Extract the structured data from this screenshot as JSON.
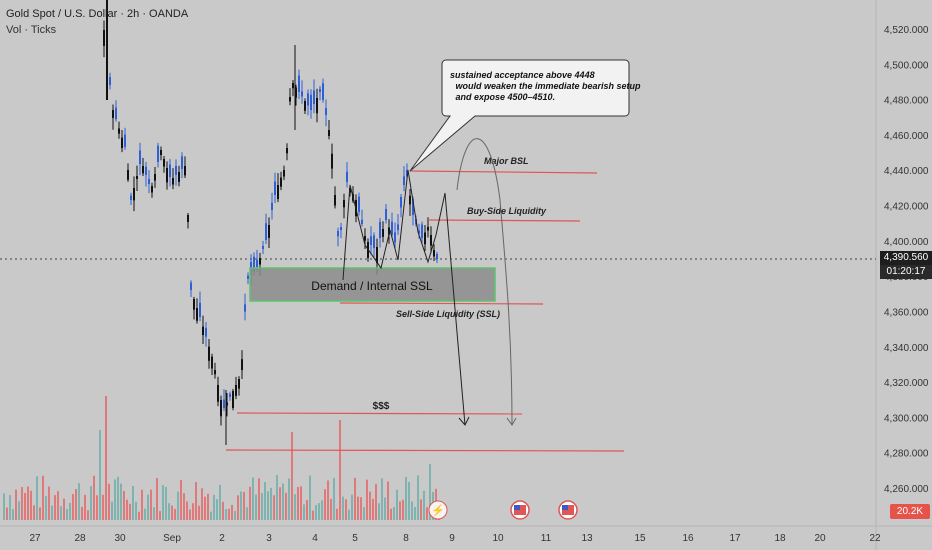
{
  "header": {
    "title": "Gold Spot / U.S. Dollar · 2h · OANDA",
    "subtitle": "Vol · Ticks"
  },
  "price_axis": {
    "ticks": [
      "4,520.000",
      "4,500.000",
      "4,480.000",
      "4,460.000",
      "4,440.000",
      "4,420.000",
      "4,400.000",
      "4,380.000",
      "4,360.000",
      "4,340.000",
      "4,320.000",
      "4,300.000",
      "4,280.000",
      "4,260.000"
    ],
    "current_price": "4,390.560",
    "countdown": "01:20:17",
    "volume_label": "20.2K"
  },
  "time_axis": {
    "ticks": [
      "27",
      "28",
      "30",
      "Sep",
      "2",
      "3",
      "4",
      "5",
      "8",
      "9",
      "10",
      "11",
      "13",
      "15",
      "16",
      "17",
      "18",
      "20",
      "22"
    ]
  },
  "annotations": {
    "callout_text": "sustained acceptance above 4448 would weaken the immediate bearish setup and expose 4500–4510.",
    "major_bsl": "Major BSL",
    "buy_side_liquidity": "Buy-Side Liquidity",
    "demand_zone": "Demand / Internal SSL",
    "sell_side_liquidity": "Sell-Side Liquidity (SSL)",
    "dollars": "$$$"
  },
  "colors": {
    "background": "#c9c9c9",
    "bull": "#2f5fd6",
    "bear": "#111111",
    "vol_up": "#7fb3b0",
    "vol_down": "#e07a7a",
    "level_line": "#e05555",
    "demand_zone_fill": "#8c8c8c",
    "demand_zone_border": "#5cc46a"
  },
  "chart_data": {
    "type": "candlestick",
    "title": "Gold Spot / U.S. Dollar · 2h · OANDA",
    "ylim": [
      4250,
      4530
    ],
    "y_ticks": [
      4520,
      4500,
      4480,
      4460,
      4440,
      4420,
      4400,
      4380,
      4360,
      4340,
      4320,
      4300,
      4280,
      4260
    ],
    "current_price": 4390.56,
    "levels": [
      {
        "name": "Major BSL",
        "price": 4438
      },
      {
        "name": "Buy-Side Liquidity",
        "price": 4413
      },
      {
        "name": "Sell-Side Liquidity (SSL)",
        "price": 4368
      },
      {
        "name": "$$$",
        "price": 4302
      },
      {
        "name": "",
        "price": 4281
      }
    ],
    "zones": [
      {
        "name": "Demand / Internal SSL",
        "from": 4366,
        "to": 4385
      }
    ]
  }
}
